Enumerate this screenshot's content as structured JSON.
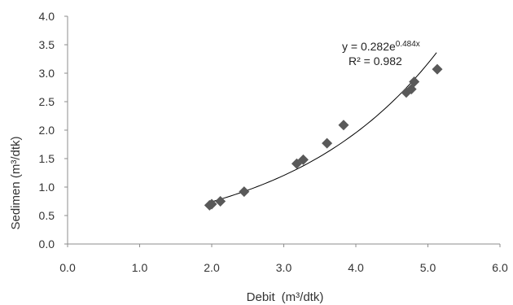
{
  "chart_data": {
    "type": "scatter",
    "xlabel": "Debit",
    "xlabel_unit": "(m³/dtk)",
    "ylabel": "Sedimen (m³/dtk)",
    "xlim": [
      0.0,
      6.0
    ],
    "ylim": [
      0.0,
      4.0
    ],
    "xticks": [
      "0.0",
      "1.0",
      "2.0",
      "3.0",
      "4.0",
      "5.0",
      "6.0"
    ],
    "yticks": [
      "0.0",
      "0.5",
      "1.0",
      "1.5",
      "2.0",
      "2.5",
      "3.0",
      "3.5",
      "4.0"
    ],
    "grid": false,
    "legend": "none",
    "marker": "diamond",
    "marker_color": "#595959",
    "trendline_color": "#000000",
    "points": [
      {
        "x": 1.97,
        "y": 0.68
      },
      {
        "x": 2.0,
        "y": 0.7
      },
      {
        "x": 2.12,
        "y": 0.75
      },
      {
        "x": 2.45,
        "y": 0.92
      },
      {
        "x": 3.18,
        "y": 1.41
      },
      {
        "x": 3.27,
        "y": 1.48
      },
      {
        "x": 3.6,
        "y": 1.77
      },
      {
        "x": 3.83,
        "y": 2.09
      },
      {
        "x": 4.7,
        "y": 2.66
      },
      {
        "x": 4.77,
        "y": 2.72
      },
      {
        "x": 4.81,
        "y": 2.85
      },
      {
        "x": 5.13,
        "y": 3.07
      }
    ],
    "trendline": {
      "type": "exponential",
      "a": 0.282,
      "b": 0.484,
      "x_range": [
        1.95,
        5.12
      ],
      "equation_prefix": "y = 0.282e",
      "equation_exponent": "0.484x",
      "r2_label": "R² = 0.982"
    }
  }
}
